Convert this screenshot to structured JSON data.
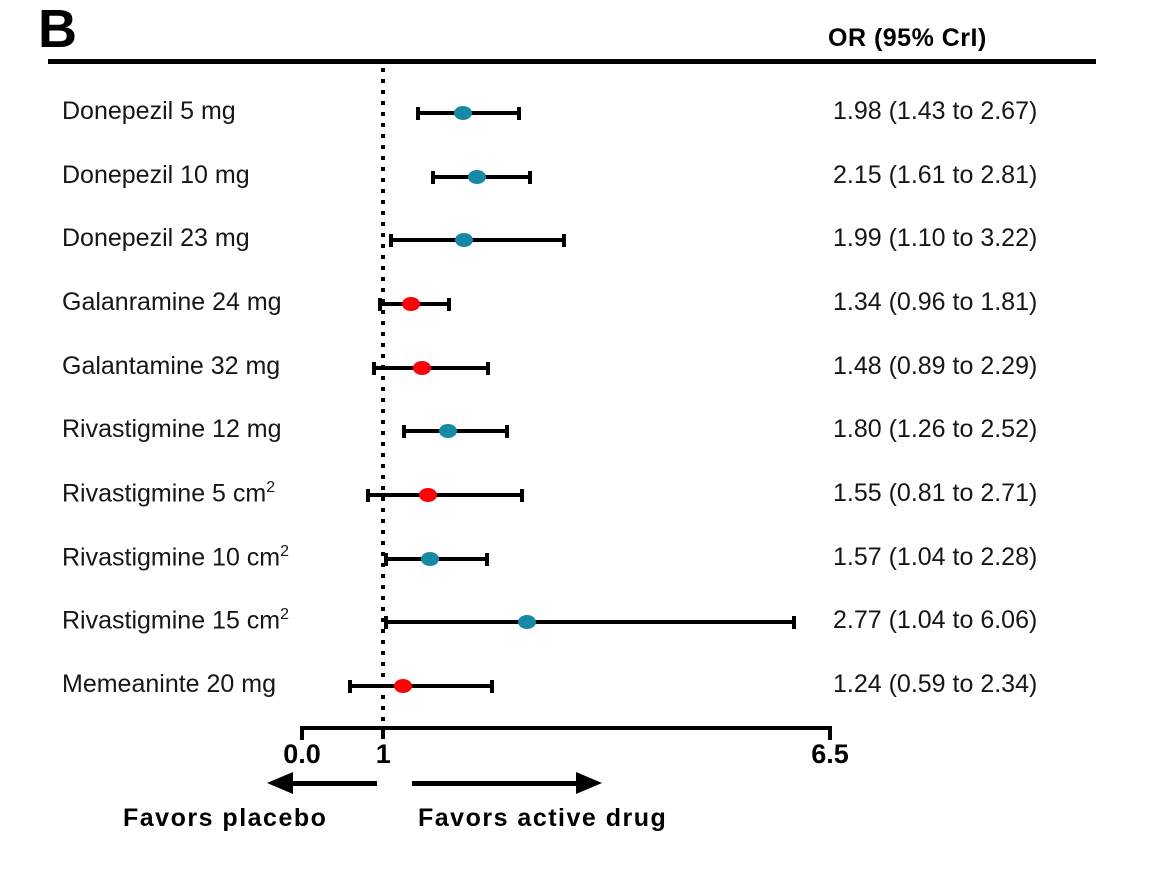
{
  "panel_label": "B",
  "header": {
    "value_column": "OR (95% CrI)"
  },
  "colors": {
    "teal": "#1789A4",
    "red": "#FA0505",
    "line": "#000000"
  },
  "axis_labels": {
    "tick_0": "0.0",
    "tick_1": "1",
    "tick_2": "6.5"
  },
  "footer": {
    "favors_left": "Favors placebo",
    "favors_right": "Favors active drug"
  },
  "chart_data": {
    "type": "forest",
    "title": "B",
    "value_column_header": "OR (95% CrI)",
    "xlim": [
      0,
      6.5
    ],
    "reference_line": 1,
    "xticks": [
      {
        "label": "0.0",
        "value": 0
      },
      {
        "label": "1",
        "value": 1
      },
      {
        "label": "6.5",
        "value": 6.5
      }
    ],
    "legend_note_left": "Favors placebo",
    "legend_note_right": "Favors active drug",
    "rows": [
      {
        "label": "Donepezil 5 mg",
        "sup": "",
        "or": 1.98,
        "ci_low": 1.43,
        "ci_high": 2.67,
        "display": "1.98 (1.43 to 2.67)",
        "color": "teal"
      },
      {
        "label": "Donepezil 10 mg",
        "sup": "",
        "or": 2.15,
        "ci_low": 1.61,
        "ci_high": 2.81,
        "display": "2.15 (1.61 to 2.81)",
        "color": "teal"
      },
      {
        "label": "Donepezil 23 mg",
        "sup": "",
        "or": 1.99,
        "ci_low": 1.1,
        "ci_high": 3.22,
        "display": "1.99 (1.10 to 3.22)",
        "color": "teal"
      },
      {
        "label": "Galanramine 24 mg",
        "sup": "",
        "or": 1.34,
        "ci_low": 0.96,
        "ci_high": 1.81,
        "display": "1.34 (0.96 to 1.81)",
        "color": "red"
      },
      {
        "label": "Galantamine 32 mg",
        "sup": "",
        "or": 1.48,
        "ci_low": 0.89,
        "ci_high": 2.29,
        "display": "1.48 (0.89 to 2.29)",
        "color": "red"
      },
      {
        "label": "Rivastigmine 12 mg",
        "sup": "",
        "or": 1.8,
        "ci_low": 1.26,
        "ci_high": 2.52,
        "display": "1.80 (1.26 to 2.52)",
        "color": "teal"
      },
      {
        "label": "Rivastigmine 5 cm",
        "sup": "2",
        "or": 1.55,
        "ci_low": 0.81,
        "ci_high": 2.71,
        "display": "1.55 (0.81 to 2.71)",
        "color": "red"
      },
      {
        "label": "Rivastigmine 10 cm",
        "sup": "2",
        "or": 1.57,
        "ci_low": 1.04,
        "ci_high": 2.28,
        "display": "1.57 (1.04 to 2.28)",
        "color": "teal"
      },
      {
        "label": "Rivastigmine 15 cm",
        "sup": "2",
        "or": 2.77,
        "ci_low": 1.04,
        "ci_high": 6.06,
        "display": "2.77 (1.04 to 6.06)",
        "color": "teal"
      },
      {
        "label": "Memeaninte 20 mg",
        "sup": "",
        "or": 1.24,
        "ci_low": 0.59,
        "ci_high": 2.34,
        "display": "1.24 (0.59 to 2.34)",
        "color": "red"
      }
    ]
  }
}
